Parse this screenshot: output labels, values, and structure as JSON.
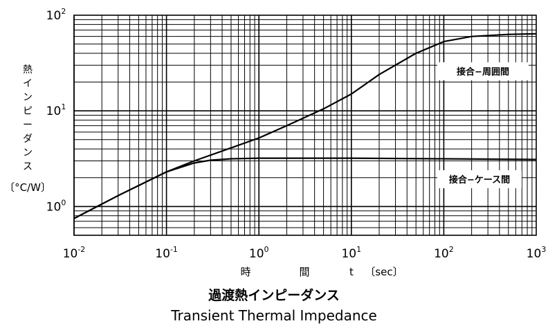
{
  "chart_data": {
    "type": "line",
    "title": "過渡熱インピーダンス",
    "subtitle": "Transient Thermal Impedance",
    "ylabel_chars": [
      "熱",
      "イ",
      "ン",
      "ピ",
      "ー",
      "ダ",
      "ン",
      "ス"
    ],
    "yunit": "〔°C/W〕",
    "xlabel": {
      "chars": [
        "時",
        "間"
      ],
      "symbol": "t",
      "unit": "〔sec〕"
    },
    "x_scale": "log",
    "y_scale": "log",
    "xlim": [
      0.01,
      1000
    ],
    "ylim": [
      0.5,
      100
    ],
    "x_ticks": [
      {
        "base": "10",
        "exp": "-2"
      },
      {
        "base": "10",
        "exp": "-1"
      },
      {
        "base": "10",
        "exp": "0"
      },
      {
        "base": "10",
        "exp": "1"
      },
      {
        "base": "10",
        "exp": "2"
      },
      {
        "base": "10",
        "exp": "3"
      }
    ],
    "y_ticks": [
      {
        "base": "10",
        "exp": "0"
      },
      {
        "base": "10",
        "exp": "1"
      },
      {
        "base": "10",
        "exp": "2"
      }
    ],
    "grid": true,
    "series": [
      {
        "name": "接合−周囲間",
        "x": [
          0.01,
          0.03,
          0.1,
          0.2,
          0.5,
          1,
          2,
          5,
          10,
          20,
          50,
          100,
          200,
          500,
          1000
        ],
        "y": [
          0.75,
          1.3,
          2.3,
          3.0,
          4.1,
          5.2,
          7.0,
          10.5,
          15.0,
          24,
          40,
          53,
          60,
          63,
          64
        ]
      },
      {
        "name": "接合−ケース間",
        "x": [
          0.01,
          0.03,
          0.1,
          0.2,
          0.3,
          0.5,
          1,
          10,
          100,
          1000
        ],
        "y": [
          0.75,
          1.3,
          2.3,
          2.85,
          3.05,
          3.15,
          3.2,
          3.2,
          3.15,
          3.1
        ]
      }
    ]
  }
}
